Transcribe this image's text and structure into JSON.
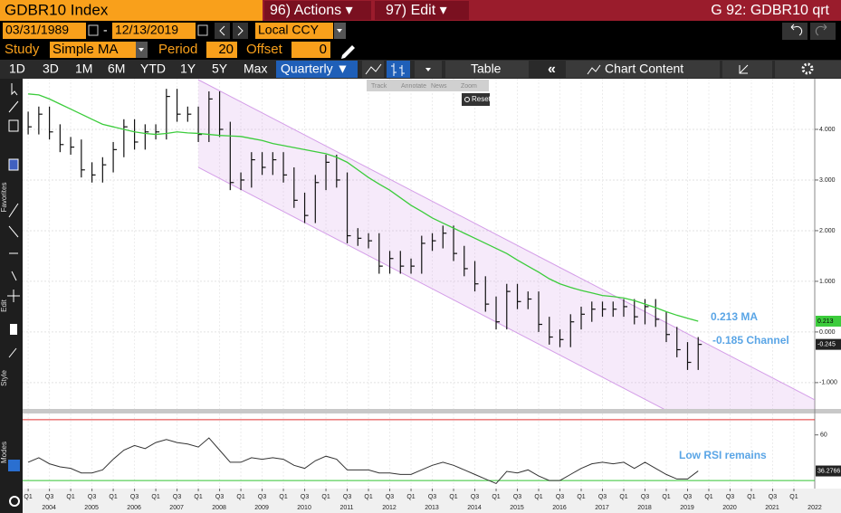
{
  "ui": {
    "header": {
      "title": "GDBR10 Index",
      "actions": "96) Actions ▾",
      "edit": "97) Edit ▾",
      "ticker": "G 92: GDBR10 qrt"
    },
    "range": {
      "start": "03/31/1989",
      "sep": "-",
      "end": "12/13/2019",
      "currency": "Local CCY"
    },
    "study": {
      "label": "Study",
      "name": "Simple MA",
      "period_label": "Period",
      "period": 20,
      "offset_label": "Offset",
      "offset": 0
    },
    "periods": [
      "1D",
      "3D",
      "1M",
      "6M",
      "YTD",
      "1Y",
      "5Y",
      "Max"
    ],
    "frequency": "Quarterly ▼",
    "collapse": "«",
    "table": "Table",
    "chart_content": "Chart Content",
    "tools": [
      "Track",
      "Annotate",
      "News",
      "Zoom"
    ],
    "reset": "Reset",
    "sidebar": [
      "Favorites",
      "Edit",
      "Style",
      "Modes"
    ]
  },
  "chart_data": {
    "type": "ohlc",
    "x": [
      2004,
      2004.25,
      2004.5,
      2004.75,
      2005,
      2005.25,
      2005.5,
      2005.75,
      2006,
      2006.25,
      2006.5,
      2006.75,
      2007,
      2007.25,
      2007.5,
      2007.75,
      2008,
      2008.25,
      2008.5,
      2008.75,
      2009,
      2009.25,
      2009.5,
      2009.75,
      2010,
      2010.25,
      2010.5,
      2010.75,
      2011,
      2011.25,
      2011.5,
      2011.75,
      2012,
      2012.25,
      2012.5,
      2012.75,
      2013,
      2013.25,
      2013.5,
      2013.75,
      2014,
      2014.25,
      2014.5,
      2014.75,
      2015,
      2015.25,
      2015.5,
      2015.75,
      2016,
      2016.25,
      2016.5,
      2016.75,
      2017,
      2017.25,
      2017.5,
      2017.75,
      2018,
      2018.25,
      2018.5,
      2018.75,
      2019,
      2019.25,
      2019.5,
      2019.75
    ],
    "price": {
      "high": [
        4.35,
        4.45,
        4.45,
        4.1,
        3.85,
        3.8,
        3.35,
        3.45,
        3.75,
        4.2,
        4.2,
        4.1,
        4.1,
        4.8,
        4.8,
        4.45,
        4.45,
        4.75,
        4.75,
        4.15,
        3.15,
        3.55,
        3.55,
        3.55,
        3.55,
        3.25,
        2.75,
        3.1,
        3.5,
        3.5,
        3.15,
        2.05,
        1.95,
        1.95,
        1.6,
        1.6,
        1.45,
        1.9,
        1.95,
        2.1,
        2.1,
        1.7,
        1.4,
        1.1,
        0.7,
        0.95,
        0.95,
        0.8,
        0.8,
        0.3,
        0.05,
        0.35,
        0.5,
        0.6,
        0.6,
        0.6,
        0.65,
        0.65,
        0.65,
        0.65,
        0.4,
        0.1,
        -0.2,
        -0.1
      ],
      "low": [
        3.9,
        3.9,
        3.8,
        3.55,
        3.5,
        3.05,
        2.95,
        2.95,
        3.15,
        3.45,
        3.6,
        3.6,
        3.8,
        3.8,
        4.15,
        4.15,
        3.75,
        3.75,
        3.85,
        2.8,
        2.8,
        2.85,
        3.1,
        3.1,
        2.95,
        2.45,
        2.15,
        2.15,
        2.8,
        2.85,
        1.75,
        1.7,
        1.65,
        1.15,
        1.15,
        1.15,
        1.15,
        1.15,
        1.6,
        1.65,
        1.4,
        1.1,
        0.8,
        0.4,
        0.05,
        0.05,
        0.45,
        0.45,
        0,
        -0.25,
        -0.3,
        -0.3,
        0.05,
        0.2,
        0.3,
        0.3,
        0.3,
        0.15,
        0.15,
        0.1,
        -0.2,
        -0.5,
        -0.75,
        -0.75
      ],
      "close": [
        4.05,
        4.3,
        3.95,
        3.7,
        3.65,
        3.2,
        3.1,
        3.3,
        3.6,
        4.05,
        3.75,
        3.95,
        3.95,
        4.65,
        4.3,
        4.3,
        3.9,
        4.6,
        4,
        2.95,
        3,
        3.4,
        3.25,
        3.4,
        3.1,
        2.6,
        2.3,
        2.95,
        3.35,
        3,
        1.9,
        1.85,
        1.8,
        1.3,
        1.45,
        1.3,
        1.3,
        1.75,
        1.8,
        1.95,
        1.55,
        1.25,
        0.95,
        0.55,
        0.2,
        0.8,
        0.6,
        0.65,
        0.15,
        -0.1,
        -0.15,
        0.2,
        0.35,
        0.45,
        0.45,
        0.45,
        0.5,
        0.3,
        0.5,
        0.25,
        -0.05,
        -0.35,
        -0.6,
        -0.245
      ]
    },
    "ma": {
      "values": [
        4.7,
        4.68,
        4.6,
        4.5,
        4.4,
        4.3,
        4.2,
        4.1,
        4.05,
        4,
        3.95,
        3.92,
        3.9,
        3.92,
        3.95,
        3.93,
        3.92,
        3.9,
        3.88,
        3.87,
        3.86,
        3.82,
        3.78,
        3.72,
        3.68,
        3.64,
        3.6,
        3.56,
        3.52,
        3.45,
        3.35,
        3.2,
        3.05,
        2.92,
        2.8,
        2.65,
        2.5,
        2.38,
        2.25,
        2.15,
        2.05,
        1.95,
        1.85,
        1.75,
        1.65,
        1.55,
        1.42,
        1.3,
        1.18,
        1.05,
        0.95,
        0.88,
        0.82,
        0.77,
        0.72,
        0.7,
        0.67,
        0.62,
        0.55,
        0.48,
        0.4,
        0.33,
        0.27,
        0.213
      ]
    },
    "channel": {
      "x": [
        2008,
        2022.49
      ],
      "upper": [
        4.98,
        -1.34
      ],
      "lower": [
        3.25,
        -3.07
      ]
    },
    "annotations": {
      "ma": "0.213 MA",
      "channel": "-0.185 Channel",
      "rsi": "Low RSI remains"
    },
    "xlim": [
      2003.87,
      2022.49
    ],
    "ylim": [
      -1.52,
      5.0
    ],
    "yticks": [
      {
        "value": 4,
        "label": "4.000"
      },
      {
        "value": 3,
        "label": "3.000"
      },
      {
        "value": 2,
        "label": "2.000"
      },
      {
        "value": 1,
        "label": "1.000"
      },
      {
        "value": 0,
        "label": "0.000"
      },
      {
        "value": -1,
        "label": "-1.000"
      }
    ],
    "xticks": [
      {
        "value": 2004,
        "label": "Q1"
      },
      {
        "value": 2004.5,
        "label": "Q3"
      },
      {
        "value": 2005,
        "label": "Q1"
      },
      {
        "value": 2005.5,
        "label": "Q3"
      },
      {
        "value": 2006,
        "label": "Q1"
      },
      {
        "value": 2006.5,
        "label": "Q3"
      },
      {
        "value": 2007,
        "label": "Q1"
      },
      {
        "value": 2007.5,
        "label": "Q3"
      },
      {
        "value": 2008,
        "label": "Q1"
      },
      {
        "value": 2008.5,
        "label": "Q3"
      },
      {
        "value": 2009,
        "label": "Q1"
      },
      {
        "value": 2009.5,
        "label": "Q3"
      },
      {
        "value": 2010,
        "label": "Q1"
      },
      {
        "value": 2010.5,
        "label": "Q3"
      },
      {
        "value": 2011,
        "label": "Q1"
      },
      {
        "value": 2011.5,
        "label": "Q3"
      },
      {
        "value": 2012,
        "label": "Q1"
      },
      {
        "value": 2012.5,
        "label": "Q3"
      },
      {
        "value": 2013,
        "label": "Q1"
      },
      {
        "value": 2013.5,
        "label": "Q3"
      },
      {
        "value": 2014,
        "label": "Q1"
      },
      {
        "value": 2014.5,
        "label": "Q3"
      },
      {
        "value": 2015,
        "label": "Q1"
      },
      {
        "value": 2015.5,
        "label": "Q3"
      },
      {
        "value": 2016,
        "label": "Q1"
      },
      {
        "value": 2016.5,
        "label": "Q3"
      },
      {
        "value": 2017,
        "label": "Q1"
      },
      {
        "value": 2017.5,
        "label": "Q3"
      },
      {
        "value": 2018,
        "label": "Q1"
      },
      {
        "value": 2018.5,
        "label": "Q3"
      },
      {
        "value": 2019,
        "label": "Q1"
      },
      {
        "value": 2019.5,
        "label": "Q3"
      },
      {
        "value": 2020,
        "label": "Q1"
      },
      {
        "value": 2020.5,
        "label": "Q3"
      },
      {
        "value": 2021,
        "label": "Q1"
      },
      {
        "value": 2021.5,
        "label": "Q3"
      },
      {
        "value": 2022,
        "label": "Q1"
      }
    ],
    "years": [
      2004,
      2005,
      2006,
      2007,
      2008,
      2009,
      2010,
      2011,
      2012,
      2013,
      2014,
      2015,
      2016,
      2017,
      2018,
      2019,
      2020,
      2021,
      2022
    ],
    "grid": true,
    "colors": {
      "bar": "#111111",
      "ma": "#3ccc3c",
      "channel": "#d49ee8",
      "rsi": "#333333",
      "annotation": "#5aa5e6"
    },
    "rsi": {
      "values": [
        42,
        45,
        41,
        39,
        38,
        35,
        35,
        37,
        44,
        50,
        53,
        51,
        55,
        57,
        55,
        54,
        52,
        58,
        50,
        42,
        42,
        45,
        44,
        45,
        44,
        40,
        38,
        43,
        46,
        44,
        37,
        37,
        37,
        35,
        35,
        34,
        34,
        37,
        40,
        42,
        40,
        37,
        34,
        31,
        28,
        36,
        35,
        37,
        33,
        30,
        30,
        34,
        38,
        41,
        42,
        41,
        42,
        38,
        42,
        38,
        34,
        31,
        31,
        36.2766
      ],
      "ylim": [
        24.7,
        74.1
      ],
      "yticks": [
        60
      ],
      "levels": [
        {
          "value": 70,
          "color": "#e03030"
        },
        {
          "value": 30,
          "color": "#33c433"
        }
      ]
    }
  }
}
